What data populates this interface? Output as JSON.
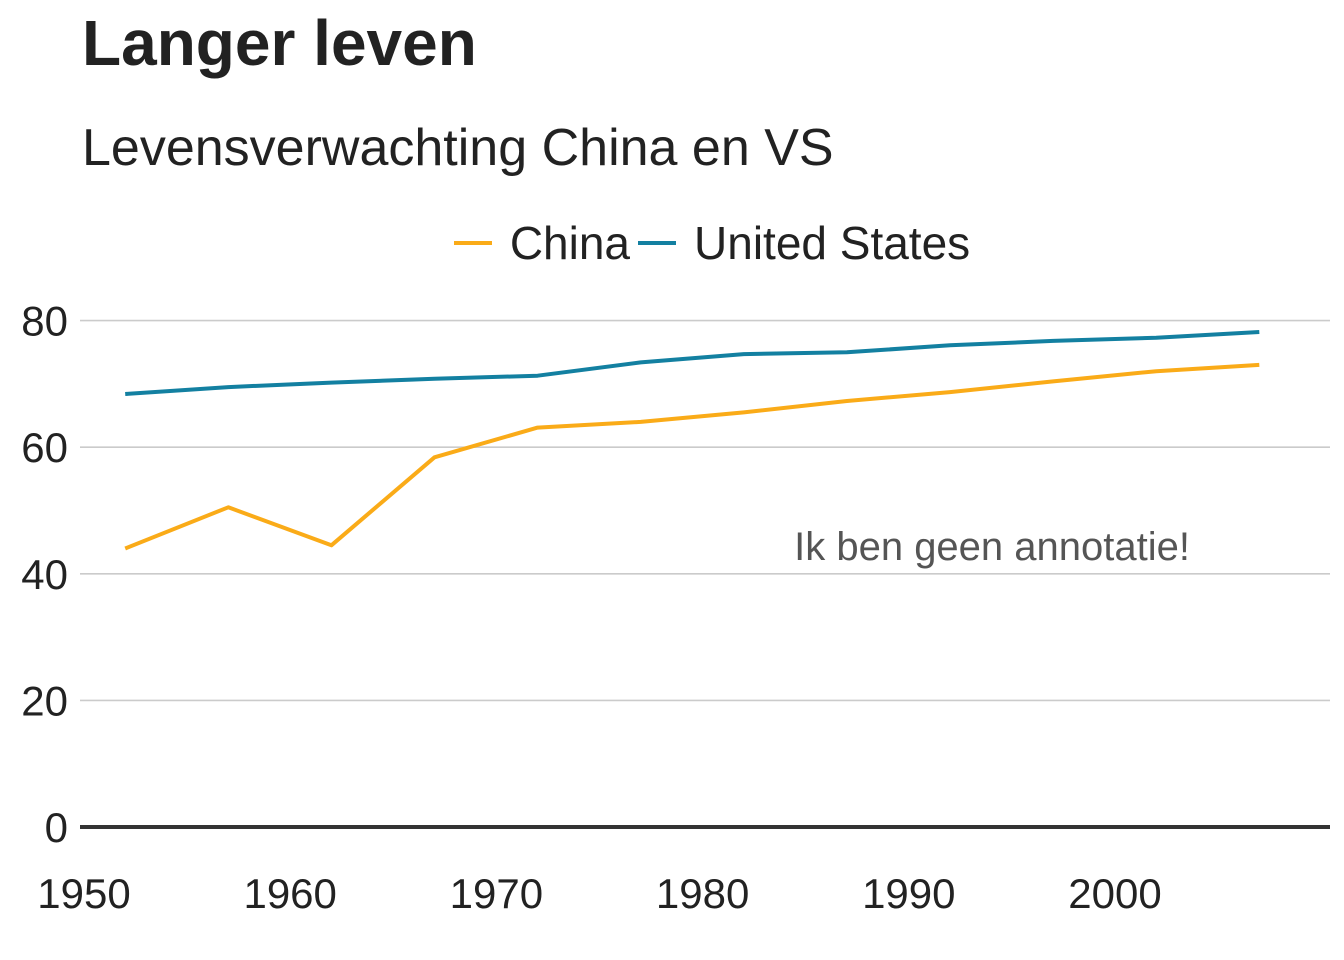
{
  "chart_data": {
    "type": "line",
    "title": "Langer leven",
    "subtitle": "Levensverwachting China en VS",
    "xlabel": "",
    "ylabel": "",
    "xlim": [
      1950,
      2010
    ],
    "ylim": [
      0,
      85
    ],
    "xticks": [
      1950,
      1960,
      1970,
      1980,
      1990,
      2000
    ],
    "yticks": [
      0,
      20,
      40,
      60,
      80
    ],
    "grid": "horizontal",
    "legend_position": "top",
    "annotation": "Ik ben geen annotatie!",
    "series": [
      {
        "name": "China",
        "color": "#FAAB18",
        "x": [
          1952,
          1957,
          1962,
          1967,
          1972,
          1977,
          1982,
          1987,
          1992,
          1997,
          2002,
          2007
        ],
        "values": [
          44.0,
          50.5,
          44.5,
          58.4,
          63.1,
          64.0,
          65.5,
          67.3,
          68.7,
          70.4,
          72.0,
          73.0
        ]
      },
      {
        "name": "United States",
        "color": "#1380A1",
        "x": [
          1952,
          1957,
          1962,
          1967,
          1972,
          1977,
          1982,
          1987,
          1992,
          1997,
          2002,
          2007
        ],
        "values": [
          68.4,
          69.5,
          70.2,
          70.8,
          71.3,
          73.4,
          74.7,
          75.0,
          76.1,
          76.8,
          77.3,
          78.2
        ]
      }
    ]
  }
}
